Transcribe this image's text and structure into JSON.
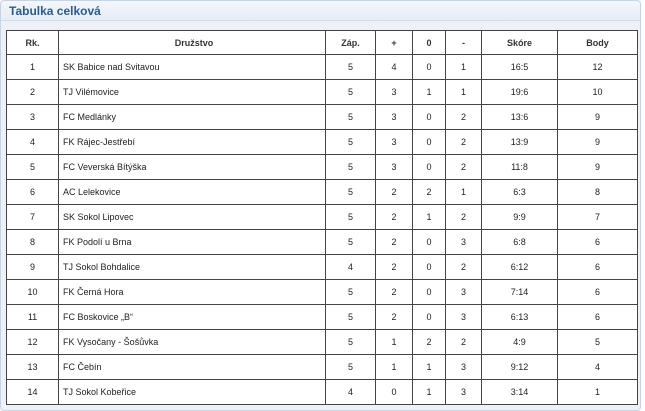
{
  "panel": {
    "title": "Tabulka celková"
  },
  "table": {
    "headers": {
      "rank": "Rk.",
      "team": "Družstvo",
      "played": "Záp.",
      "wins": "+",
      "draws": "0",
      "losses": "-",
      "score": "Skóre",
      "points": "Body"
    },
    "rows": [
      {
        "rank": "1",
        "team": "SK Babice nad Svitavou",
        "played": "5",
        "wins": "4",
        "draws": "0",
        "losses": "1",
        "score": "16:5",
        "points": "12"
      },
      {
        "rank": "2",
        "team": "TJ Vilémovice",
        "played": "5",
        "wins": "3",
        "draws": "1",
        "losses": "1",
        "score": "19:6",
        "points": "10"
      },
      {
        "rank": "3",
        "team": "FC Medlánky",
        "played": "5",
        "wins": "3",
        "draws": "0",
        "losses": "2",
        "score": "13:6",
        "points": "9"
      },
      {
        "rank": "4",
        "team": "FK Rájec-Jestřebí",
        "played": "5",
        "wins": "3",
        "draws": "0",
        "losses": "2",
        "score": "13:9",
        "points": "9"
      },
      {
        "rank": "5",
        "team": "FC Veverská Bítýška",
        "played": "5",
        "wins": "3",
        "draws": "0",
        "losses": "2",
        "score": "11:8",
        "points": "9"
      },
      {
        "rank": "6",
        "team": "AC Lelekovice",
        "played": "5",
        "wins": "2",
        "draws": "2",
        "losses": "1",
        "score": "6:3",
        "points": "8"
      },
      {
        "rank": "7",
        "team": "SK Sokol Lipovec",
        "played": "5",
        "wins": "2",
        "draws": "1",
        "losses": "2",
        "score": "9:9",
        "points": "7"
      },
      {
        "rank": "8",
        "team": "FK Podolí u Brna",
        "played": "5",
        "wins": "2",
        "draws": "0",
        "losses": "3",
        "score": "6:8",
        "points": "6"
      },
      {
        "rank": "9",
        "team": "TJ Sokol Bohdalice",
        "played": "4",
        "wins": "2",
        "draws": "0",
        "losses": "2",
        "score": "6:12",
        "points": "6"
      },
      {
        "rank": "10",
        "team": "FK Černá Hora",
        "played": "5",
        "wins": "2",
        "draws": "0",
        "losses": "3",
        "score": "7:14",
        "points": "6"
      },
      {
        "rank": "11",
        "team": "FC Boskovice „B“",
        "played": "5",
        "wins": "2",
        "draws": "0",
        "losses": "3",
        "score": "6:13",
        "points": "6"
      },
      {
        "rank": "12",
        "team": "FK Vysočany - Šošůvka",
        "played": "5",
        "wins": "1",
        "draws": "2",
        "losses": "2",
        "score": "4:9",
        "points": "5"
      },
      {
        "rank": "13",
        "team": "FC Čebín",
        "played": "5",
        "wins": "1",
        "draws": "1",
        "losses": "3",
        "score": "9:12",
        "points": "4"
      },
      {
        "rank": "14",
        "team": "TJ Sokol Kobeřice",
        "played": "4",
        "wins": "0",
        "draws": "1",
        "losses": "3",
        "score": "3:14",
        "points": "1"
      }
    ]
  }
}
